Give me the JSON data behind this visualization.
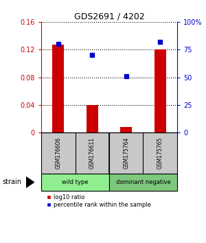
{
  "title": "GDS2691 / 4202",
  "samples": [
    "GSM176606",
    "GSM176611",
    "GSM175764",
    "GSM175765"
  ],
  "log10_ratio": [
    0.127,
    0.04,
    0.008,
    0.12
  ],
  "percentile_rank": [
    80.0,
    70.0,
    51.0,
    82.0
  ],
  "ylim_left": [
    0,
    0.16
  ],
  "ylim_right": [
    0,
    100
  ],
  "yticks_left": [
    0,
    0.04,
    0.08,
    0.12,
    0.16
  ],
  "ytick_labels_left": [
    "0",
    "0.04",
    "0.08",
    "0.12",
    "0.16"
  ],
  "yticks_right": [
    0,
    25,
    50,
    75,
    100
  ],
  "ytick_labels_right": [
    "0",
    "25",
    "50",
    "75",
    "100%"
  ],
  "groups": [
    {
      "label": "wild type",
      "samples": [
        0,
        1
      ],
      "color": "#90EE90"
    },
    {
      "label": "dominant negative",
      "samples": [
        2,
        3
      ],
      "color": "#7EC87E"
    }
  ],
  "bar_color": "#CC0000",
  "marker_color": "#0000CC",
  "bar_width": 0.35,
  "background_color": "#ffffff",
  "left_axis_color": "#CC0000",
  "right_axis_color": "#0000CC",
  "legend_red_label": "log10 ratio",
  "legend_blue_label": "percentile rank within the sample",
  "strain_label": "strain",
  "sample_box_color": "#c8c8c8"
}
